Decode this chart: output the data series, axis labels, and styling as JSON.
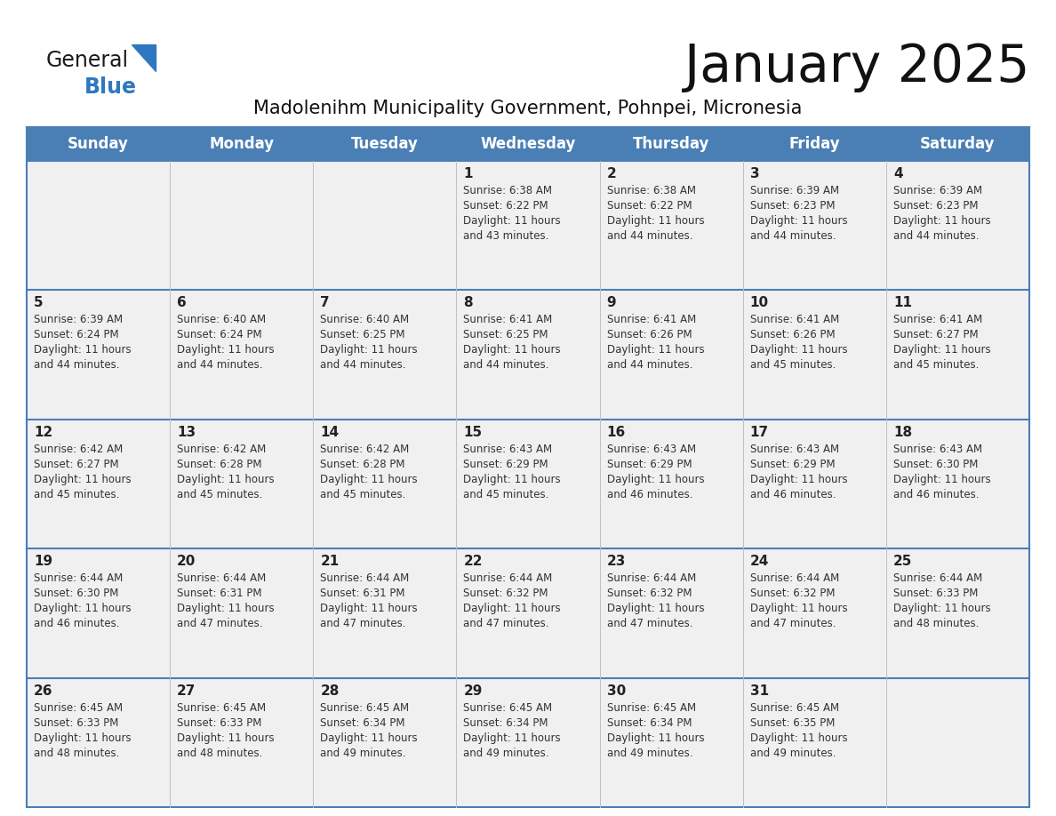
{
  "title": "January 2025",
  "subtitle": "Madolenihm Municipality Government, Pohnpei, Micronesia",
  "days_of_week": [
    "Sunday",
    "Monday",
    "Tuesday",
    "Wednesday",
    "Thursday",
    "Friday",
    "Saturday"
  ],
  "header_bg": "#4a7fb5",
  "header_text": "#ffffff",
  "row_bg_light": "#f0f0f0",
  "row_bg_white": "#ffffff",
  "border_color": "#4a7fb5",
  "cell_border_color": "#c0c0c0",
  "day_number_color": "#222222",
  "text_color": "#333333",
  "title_color": "#111111",
  "subtitle_color": "#111111",
  "logo_general_color": "#1a1a1a",
  "logo_blue_color": "#2e78c0",
  "calendar_data": [
    {
      "day": 1,
      "col": 3,
      "row": 0,
      "sunrise": "6:38 AM",
      "sunset": "6:22 PM",
      "daylight": "11 hours and 43 minutes."
    },
    {
      "day": 2,
      "col": 4,
      "row": 0,
      "sunrise": "6:38 AM",
      "sunset": "6:22 PM",
      "daylight": "11 hours and 44 minutes."
    },
    {
      "day": 3,
      "col": 5,
      "row": 0,
      "sunrise": "6:39 AM",
      "sunset": "6:23 PM",
      "daylight": "11 hours and 44 minutes."
    },
    {
      "day": 4,
      "col": 6,
      "row": 0,
      "sunrise": "6:39 AM",
      "sunset": "6:23 PM",
      "daylight": "11 hours and 44 minutes."
    },
    {
      "day": 5,
      "col": 0,
      "row": 1,
      "sunrise": "6:39 AM",
      "sunset": "6:24 PM",
      "daylight": "11 hours and 44 minutes."
    },
    {
      "day": 6,
      "col": 1,
      "row": 1,
      "sunrise": "6:40 AM",
      "sunset": "6:24 PM",
      "daylight": "11 hours and 44 minutes."
    },
    {
      "day": 7,
      "col": 2,
      "row": 1,
      "sunrise": "6:40 AM",
      "sunset": "6:25 PM",
      "daylight": "11 hours and 44 minutes."
    },
    {
      "day": 8,
      "col": 3,
      "row": 1,
      "sunrise": "6:41 AM",
      "sunset": "6:25 PM",
      "daylight": "11 hours and 44 minutes."
    },
    {
      "day": 9,
      "col": 4,
      "row": 1,
      "sunrise": "6:41 AM",
      "sunset": "6:26 PM",
      "daylight": "11 hours and 44 minutes."
    },
    {
      "day": 10,
      "col": 5,
      "row": 1,
      "sunrise": "6:41 AM",
      "sunset": "6:26 PM",
      "daylight": "11 hours and 45 minutes."
    },
    {
      "day": 11,
      "col": 6,
      "row": 1,
      "sunrise": "6:41 AM",
      "sunset": "6:27 PM",
      "daylight": "11 hours and 45 minutes."
    },
    {
      "day": 12,
      "col": 0,
      "row": 2,
      "sunrise": "6:42 AM",
      "sunset": "6:27 PM",
      "daylight": "11 hours and 45 minutes."
    },
    {
      "day": 13,
      "col": 1,
      "row": 2,
      "sunrise": "6:42 AM",
      "sunset": "6:28 PM",
      "daylight": "11 hours and 45 minutes."
    },
    {
      "day": 14,
      "col": 2,
      "row": 2,
      "sunrise": "6:42 AM",
      "sunset": "6:28 PM",
      "daylight": "11 hours and 45 minutes."
    },
    {
      "day": 15,
      "col": 3,
      "row": 2,
      "sunrise": "6:43 AM",
      "sunset": "6:29 PM",
      "daylight": "11 hours and 45 minutes."
    },
    {
      "day": 16,
      "col": 4,
      "row": 2,
      "sunrise": "6:43 AM",
      "sunset": "6:29 PM",
      "daylight": "11 hours and 46 minutes."
    },
    {
      "day": 17,
      "col": 5,
      "row": 2,
      "sunrise": "6:43 AM",
      "sunset": "6:29 PM",
      "daylight": "11 hours and 46 minutes."
    },
    {
      "day": 18,
      "col": 6,
      "row": 2,
      "sunrise": "6:43 AM",
      "sunset": "6:30 PM",
      "daylight": "11 hours and 46 minutes."
    },
    {
      "day": 19,
      "col": 0,
      "row": 3,
      "sunrise": "6:44 AM",
      "sunset": "6:30 PM",
      "daylight": "11 hours and 46 minutes."
    },
    {
      "day": 20,
      "col": 1,
      "row": 3,
      "sunrise": "6:44 AM",
      "sunset": "6:31 PM",
      "daylight": "11 hours and 47 minutes."
    },
    {
      "day": 21,
      "col": 2,
      "row": 3,
      "sunrise": "6:44 AM",
      "sunset": "6:31 PM",
      "daylight": "11 hours and 47 minutes."
    },
    {
      "day": 22,
      "col": 3,
      "row": 3,
      "sunrise": "6:44 AM",
      "sunset": "6:32 PM",
      "daylight": "11 hours and 47 minutes."
    },
    {
      "day": 23,
      "col": 4,
      "row": 3,
      "sunrise": "6:44 AM",
      "sunset": "6:32 PM",
      "daylight": "11 hours and 47 minutes."
    },
    {
      "day": 24,
      "col": 5,
      "row": 3,
      "sunrise": "6:44 AM",
      "sunset": "6:32 PM",
      "daylight": "11 hours and 47 minutes."
    },
    {
      "day": 25,
      "col": 6,
      "row": 3,
      "sunrise": "6:44 AM",
      "sunset": "6:33 PM",
      "daylight": "11 hours and 48 minutes."
    },
    {
      "day": 26,
      "col": 0,
      "row": 4,
      "sunrise": "6:45 AM",
      "sunset": "6:33 PM",
      "daylight": "11 hours and 48 minutes."
    },
    {
      "day": 27,
      "col": 1,
      "row": 4,
      "sunrise": "6:45 AM",
      "sunset": "6:33 PM",
      "daylight": "11 hours and 48 minutes."
    },
    {
      "day": 28,
      "col": 2,
      "row": 4,
      "sunrise": "6:45 AM",
      "sunset": "6:34 PM",
      "daylight": "11 hours and 49 minutes."
    },
    {
      "day": 29,
      "col": 3,
      "row": 4,
      "sunrise": "6:45 AM",
      "sunset": "6:34 PM",
      "daylight": "11 hours and 49 minutes."
    },
    {
      "day": 30,
      "col": 4,
      "row": 4,
      "sunrise": "6:45 AM",
      "sunset": "6:34 PM",
      "daylight": "11 hours and 49 minutes."
    },
    {
      "day": 31,
      "col": 5,
      "row": 4,
      "sunrise": "6:45 AM",
      "sunset": "6:35 PM",
      "daylight": "11 hours and 49 minutes."
    }
  ]
}
